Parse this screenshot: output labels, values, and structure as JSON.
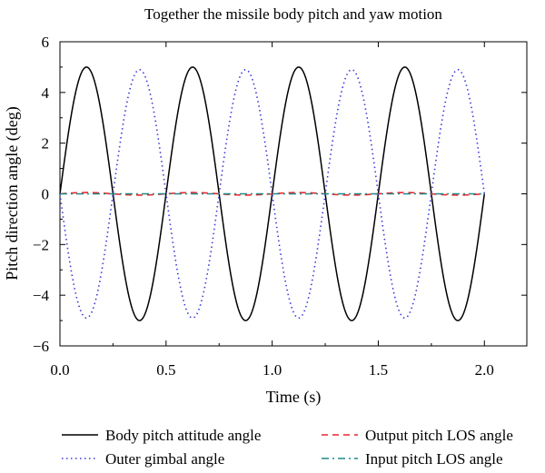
{
  "chart_data": {
    "type": "line",
    "title": "Together the missile body pitch and yaw motion",
    "xlabel": "Time (s)",
    "ylabel": "Pitch direction angle (deg)",
    "xlim": [
      0.0,
      2.2
    ],
    "ylim": [
      -6,
      6
    ],
    "x_ticks": [
      0.0,
      0.5,
      1.0,
      1.5,
      2.0
    ],
    "x_tick_labels": [
      "0.0",
      "0.5",
      "1.0",
      "1.5",
      "2.0"
    ],
    "y_ticks": [
      -6,
      -4,
      -2,
      0,
      2,
      4,
      6
    ],
    "y_tick_labels": [
      "−6",
      "−4",
      "−2",
      "0",
      "2",
      "4",
      "6"
    ],
    "grid": false,
    "legend_position": "bottom",
    "series": [
      {
        "name": "Body pitch attitude angle",
        "style": "solid",
        "color": "#000000",
        "amplitude": 5.0,
        "frequency_hz": 2.0,
        "phase": "sine",
        "x_range": [
          0.0,
          2.0
        ]
      },
      {
        "name": "Output pitch LOS angle",
        "style": "dashed",
        "color": "#e8262b",
        "amplitude": 0.05,
        "frequency_hz": 2.0,
        "phase": "sine",
        "x_range": [
          0.0,
          2.0
        ]
      },
      {
        "name": "Outer gimbal angle",
        "style": "dotted",
        "color": "#3a3ad8",
        "amplitude": 4.9,
        "frequency_hz": 2.0,
        "phase": "negative-sine",
        "x_range": [
          0.0,
          2.0
        ]
      },
      {
        "name": "Input pitch LOS angle",
        "style": "dashdot",
        "color": "#1f8a8a",
        "amplitude": 0.0,
        "frequency_hz": 2.0,
        "phase": "sine",
        "x_range": [
          0.0,
          2.0
        ]
      }
    ]
  }
}
